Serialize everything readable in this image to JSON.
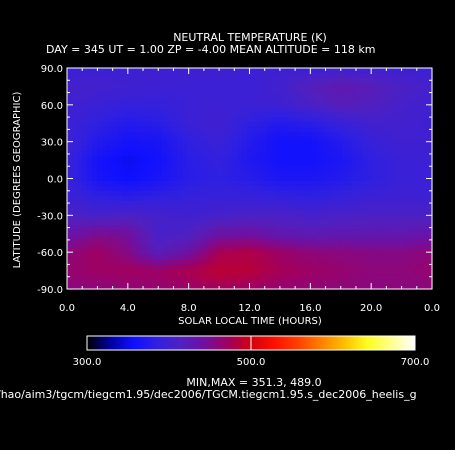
{
  "header": {
    "title": "NEUTRAL TEMPERATURE (K)",
    "subtitle": "DAY = 345   UT =   1.00   ZP =   -4.00   MEAN ALTITUDE = 118 km"
  },
  "footer": {
    "minmax": "MIN,MAX =      351.3,      489.0",
    "filepath": "/hao/aim3/tgcm/tiegcm1.95/dec2006/TGCM.tiegcm1.95.s_dec2006_heelis_g"
  },
  "colors": {
    "background": "#000000",
    "axes": "#ffffff",
    "colormap": [
      "#000000",
      "#0000a0",
      "#1010ff",
      "#3020e0",
      "#5020c0",
      "#7010a0",
      "#a00060",
      "#d00010",
      "#ff1000",
      "#ff4000",
      "#ff8000",
      "#ffc000",
      "#ffff20",
      "#ffff90",
      "#ffffff"
    ]
  },
  "chart_data": {
    "type": "heatmap",
    "title": "NEUTRAL TEMPERATURE (K)",
    "xlabel": "SOLAR LOCAL TIME (HOURS)",
    "ylabel": "LATITUDE (DEGREES GEOGRAPHIC)",
    "xlim": [
      0,
      24
    ],
    "ylim": [
      -90,
      90
    ],
    "x_ticks": [
      "0.0",
      "4.0",
      "8.0",
      "12.0",
      "16.0",
      "20.0",
      "0.0"
    ],
    "y_ticks": [
      "90.0",
      "60.0",
      "30.0",
      "0.0",
      "-30.0",
      "-60.0",
      "-90.0"
    ],
    "colorbar": {
      "range": [
        300,
        700
      ],
      "ticks": [
        "300.0",
        "500.0",
        "700.0"
      ]
    },
    "min": 351.3,
    "max": 489.0,
    "x_hours": [
      0,
      2,
      4,
      6,
      8,
      10,
      12,
      14,
      16,
      18,
      20,
      22,
      24
    ],
    "lat": [
      90,
      75,
      60,
      45,
      30,
      15,
      0,
      -15,
      -30,
      -45,
      -60,
      -75,
      -90
    ],
    "values": [
      [
        395,
        395,
        396,
        398,
        400,
        400,
        398,
        397,
        396,
        396,
        398,
        397,
        395
      ],
      [
        405,
        403,
        400,
        398,
        396,
        395,
        395,
        402,
        418,
        430,
        422,
        410,
        405
      ],
      [
        400,
        395,
        390,
        390,
        395,
        398,
        396,
        398,
        408,
        420,
        415,
        405,
        400
      ],
      [
        398,
        385,
        375,
        380,
        395,
        400,
        385,
        375,
        380,
        392,
        402,
        402,
        398
      ],
      [
        400,
        375,
        362,
        365,
        385,
        395,
        375,
        360,
        360,
        375,
        392,
        400,
        400
      ],
      [
        395,
        362,
        352,
        360,
        380,
        388,
        372,
        360,
        360,
        368,
        385,
        395,
        395
      ],
      [
        395,
        365,
        356,
        365,
        380,
        385,
        378,
        368,
        368,
        375,
        385,
        395,
        395
      ],
      [
        398,
        385,
        380,
        385,
        390,
        392,
        392,
        388,
        385,
        390,
        396,
        398,
        398
      ],
      [
        410,
        405,
        410,
        405,
        400,
        404,
        410,
        410,
        405,
        408,
        410,
        410,
        410
      ],
      [
        435,
        450,
        445,
        405,
        412,
        438,
        440,
        430,
        425,
        428,
        428,
        430,
        435
      ],
      [
        460,
        470,
        455,
        420,
        440,
        475,
        480,
        468,
        460,
        458,
        455,
        455,
        460
      ],
      [
        465,
        470,
        472,
        470,
        478,
        488,
        485,
        475,
        470,
        465,
        460,
        460,
        465
      ],
      [
        458,
        460,
        462,
        464,
        468,
        472,
        470,
        465,
        462,
        460,
        458,
        458,
        458
      ]
    ]
  }
}
